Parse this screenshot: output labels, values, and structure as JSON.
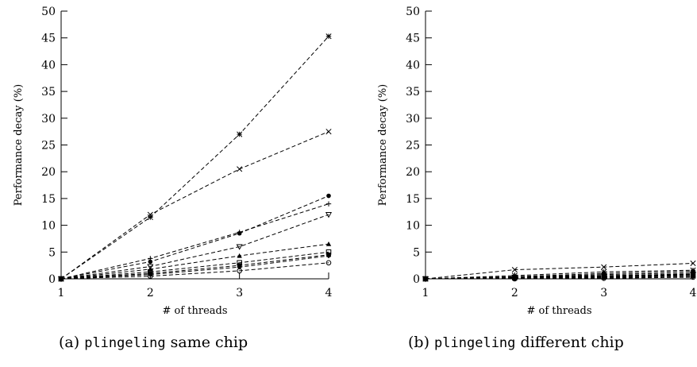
{
  "chart_data": [
    {
      "type": "line",
      "ylabel": "Performance decay (%)",
      "xlabel": "# of threads",
      "xlim": [
        1,
        4
      ],
      "ylim": [
        0,
        50
      ],
      "x": [
        1,
        2,
        3,
        4
      ],
      "xticks": [
        "1",
        "2",
        "3",
        "4"
      ],
      "yticks": [
        "0",
        "5",
        "10",
        "15",
        "20",
        "25",
        "30",
        "35",
        "40",
        "45",
        "50"
      ],
      "line_style": "dashed",
      "series": [
        {
          "marker": "asterisk",
          "values": [
            0,
            11.5,
            27.0,
            45.3
          ]
        },
        {
          "marker": "x",
          "values": [
            0,
            12.0,
            20.5,
            27.5
          ]
        },
        {
          "marker": "filled-circle",
          "values": [
            0,
            3.2,
            8.5,
            15.5
          ]
        },
        {
          "marker": "plus",
          "values": [
            0,
            3.8,
            8.7,
            14.0
          ]
        },
        {
          "marker": "triangle-down",
          "values": [
            0,
            2.3,
            6.0,
            12.0
          ]
        },
        {
          "marker": "triangle-up",
          "values": [
            0,
            1.8,
            4.3,
            6.5
          ]
        },
        {
          "marker": "square",
          "values": [
            0,
            1.3,
            3.0,
            5.0
          ]
        },
        {
          "marker": "filled-square",
          "values": [
            0,
            1.0,
            2.5,
            4.5
          ]
        },
        {
          "marker": "diamond",
          "values": [
            0,
            0.8,
            2.2,
            4.3
          ]
        },
        {
          "marker": "circle",
          "values": [
            0,
            0.5,
            1.5,
            3.0
          ]
        }
      ]
    },
    {
      "type": "line",
      "ylabel": "Performance decay (%)",
      "xlabel": "# of threads",
      "xlim": [
        1,
        4
      ],
      "ylim": [
        0,
        50
      ],
      "x": [
        1,
        2,
        3,
        4
      ],
      "xticks": [
        "1",
        "2",
        "3",
        "4"
      ],
      "yticks": [
        "0",
        "5",
        "10",
        "15",
        "20",
        "25",
        "30",
        "35",
        "40",
        "45",
        "50"
      ],
      "line_style": "dashed",
      "series": [
        {
          "marker": "x",
          "values": [
            0,
            1.7,
            2.2,
            2.9
          ]
        },
        {
          "marker": "asterisk",
          "values": [
            0,
            0.6,
            1.3,
            1.6
          ]
        },
        {
          "marker": "filled-circle",
          "values": [
            0,
            0.4,
            1.0,
            1.4
          ]
        },
        {
          "marker": "plus",
          "values": [
            0,
            0.3,
            0.8,
            1.1
          ]
        },
        {
          "marker": "triangle-down",
          "values": [
            0,
            0.3,
            0.6,
            0.9
          ]
        },
        {
          "marker": "triangle-up",
          "values": [
            0,
            0.2,
            0.5,
            0.8
          ]
        },
        {
          "marker": "square",
          "values": [
            0,
            0.2,
            0.4,
            0.7
          ]
        },
        {
          "marker": "filled-square",
          "values": [
            0,
            0.1,
            0.3,
            0.6
          ]
        },
        {
          "marker": "diamond",
          "values": [
            0,
            0.1,
            0.2,
            0.4
          ]
        },
        {
          "marker": "circle",
          "values": [
            0,
            0.0,
            0.1,
            0.3
          ]
        }
      ]
    }
  ],
  "captions": {
    "a": {
      "prefix": "(a)",
      "code": "plingeling",
      "suffix": "same chip"
    },
    "b": {
      "prefix": "(b)",
      "code": "plingeling",
      "suffix": "different chip"
    }
  }
}
